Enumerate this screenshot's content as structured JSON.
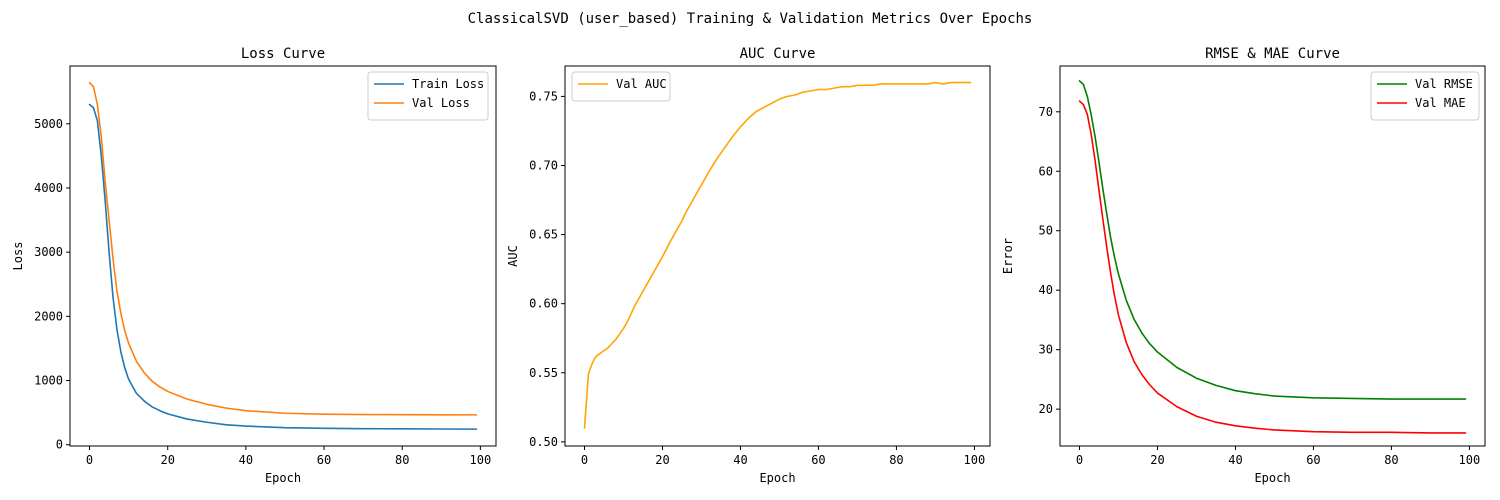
{
  "figure": {
    "suptitle": "ClassicalSVD (user_based) Training & Validation Metrics Over Epochs"
  },
  "chart_data": [
    {
      "type": "line",
      "title": "Loss Curve",
      "xlabel": "Epoch",
      "ylabel": "Loss",
      "xlim": [
        -5,
        104
      ],
      "ylim": [
        -20,
        5900
      ],
      "xticks": [
        0,
        20,
        40,
        60,
        80,
        100
      ],
      "yticks": [
        0,
        1000,
        2000,
        3000,
        4000,
        5000
      ],
      "grid": false,
      "legend_position": "upper right",
      "x": [
        0,
        1,
        2,
        3,
        4,
        5,
        6,
        7,
        8,
        9,
        10,
        12,
        14,
        16,
        18,
        20,
        25,
        30,
        35,
        40,
        50,
        60,
        70,
        80,
        90,
        99
      ],
      "series": [
        {
          "name": "Train Loss",
          "color": "#1f77b4",
          "values": [
            5300,
            5250,
            5050,
            4500,
            3800,
            3000,
            2300,
            1800,
            1450,
            1200,
            1020,
            800,
            680,
            590,
            530,
            480,
            400,
            350,
            310,
            290,
            265,
            255,
            250,
            247,
            245,
            243
          ]
        },
        {
          "name": "Val Loss",
          "color": "#ff7f0e",
          "values": [
            5640,
            5580,
            5300,
            4800,
            4100,
            3500,
            2900,
            2400,
            2050,
            1780,
            1580,
            1300,
            1120,
            990,
            900,
            830,
            710,
            630,
            570,
            530,
            490,
            475,
            470,
            468,
            466,
            465
          ]
        }
      ]
    },
    {
      "type": "line",
      "title": "AUC Curve",
      "xlabel": "Epoch",
      "ylabel": "AUC",
      "xlim": [
        -5,
        104
      ],
      "ylim": [
        0.497,
        0.772
      ],
      "xticks": [
        0,
        20,
        40,
        60,
        80,
        100
      ],
      "yticks": [
        0.5,
        0.55,
        0.6,
        0.65,
        0.7,
        0.75
      ],
      "ytick_labels": [
        "0.50",
        "0.55",
        "0.60",
        "0.65",
        "0.70",
        "0.75"
      ],
      "grid": false,
      "legend_position": "upper left",
      "x": [
        0,
        1,
        2,
        3,
        4,
        5,
        6,
        7,
        8,
        9,
        10,
        11,
        12,
        13,
        14,
        15,
        16,
        18,
        20,
        22,
        24,
        25,
        26,
        28,
        30,
        32,
        34,
        36,
        38,
        40,
        42,
        44,
        46,
        48,
        50,
        52,
        54,
        56,
        58,
        60,
        62,
        64,
        66,
        68,
        70,
        72,
        74,
        76,
        78,
        80,
        82,
        84,
        86,
        88,
        90,
        92,
        94,
        96,
        98,
        99
      ],
      "series": [
        {
          "name": "Val AUC",
          "color": "#ffa500",
          "values": [
            0.51,
            0.549,
            0.557,
            0.562,
            0.564,
            0.566,
            0.568,
            0.571,
            0.574,
            0.578,
            0.582,
            0.587,
            0.593,
            0.599,
            0.604,
            0.609,
            0.614,
            0.624,
            0.634,
            0.645,
            0.655,
            0.66,
            0.666,
            0.676,
            0.686,
            0.696,
            0.705,
            0.713,
            0.721,
            0.728,
            0.734,
            0.739,
            0.742,
            0.745,
            0.748,
            0.75,
            0.751,
            0.753,
            0.754,
            0.755,
            0.755,
            0.756,
            0.757,
            0.757,
            0.758,
            0.758,
            0.758,
            0.759,
            0.759,
            0.759,
            0.759,
            0.759,
            0.759,
            0.759,
            0.76,
            0.759,
            0.76,
            0.76,
            0.76,
            0.76
          ]
        }
      ]
    },
    {
      "type": "line",
      "title": "RMSE & MAE Curve",
      "xlabel": "Epoch",
      "ylabel": "Error",
      "xlim": [
        -5,
        104
      ],
      "ylim": [
        13.8,
        77.7
      ],
      "xticks": [
        0,
        20,
        40,
        60,
        80,
        100
      ],
      "yticks": [
        20,
        30,
        40,
        50,
        60,
        70
      ],
      "grid": false,
      "legend_position": "upper right",
      "x": [
        0,
        1,
        2,
        3,
        4,
        5,
        6,
        7,
        8,
        9,
        10,
        12,
        14,
        16,
        18,
        20,
        25,
        30,
        35,
        40,
        45,
        50,
        60,
        70,
        80,
        90,
        99
      ],
      "series": [
        {
          "name": "Val RMSE",
          "color": "#008000",
          "values": [
            75.2,
            74.6,
            72.6,
            69.5,
            65.8,
            61.5,
            57.0,
            52.8,
            48.8,
            45.5,
            42.7,
            38.3,
            35.1,
            32.8,
            31.0,
            29.6,
            27.0,
            25.2,
            24.0,
            23.1,
            22.6,
            22.2,
            21.9,
            21.8,
            21.7,
            21.7,
            21.7
          ]
        },
        {
          "name": "Val MAE",
          "color": "#ff0000",
          "values": [
            71.8,
            71.2,
            69.6,
            66.2,
            61.8,
            56.8,
            51.9,
            47.2,
            42.8,
            39.0,
            35.8,
            31.2,
            28.0,
            25.8,
            24.1,
            22.7,
            20.4,
            18.8,
            17.8,
            17.2,
            16.8,
            16.5,
            16.2,
            16.1,
            16.1,
            16.0,
            16.0
          ]
        }
      ]
    }
  ]
}
